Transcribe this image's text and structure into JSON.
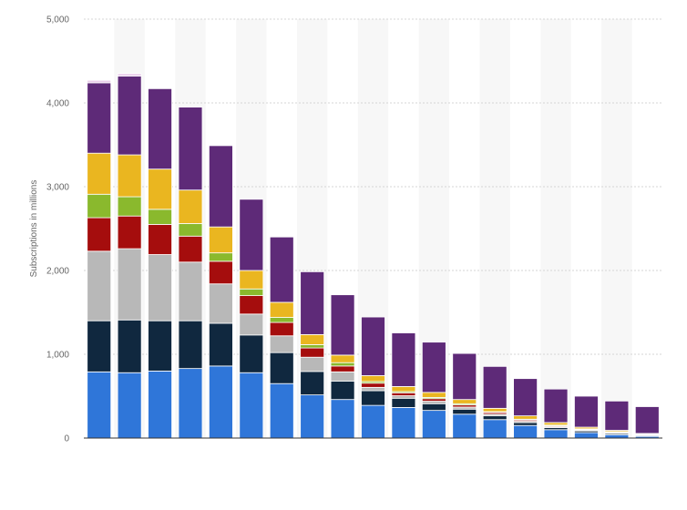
{
  "chart_data": {
    "type": "bar",
    "stacked": true,
    "ylabel": "Subscriptions in millions",
    "ylim": [
      0,
      5000
    ],
    "yticks": [
      0,
      1000,
      2000,
      3000,
      4000,
      5000
    ],
    "ytick_labels": [
      "0",
      "1,000",
      "2,000",
      "3,000",
      "4,000",
      "5,000"
    ],
    "grid": true,
    "legend": "none",
    "x_count": 19,
    "series": [
      {
        "color": "#2f76d9",
        "values": [
          790,
          780,
          800,
          830,
          860,
          780,
          650,
          515,
          460,
          390,
          365,
          330,
          285,
          220,
          150,
          100,
          65,
          40,
          20
        ]
      },
      {
        "color": "#10283f",
        "values": [
          610,
          630,
          600,
          570,
          510,
          450,
          370,
          280,
          220,
          175,
          110,
          80,
          60,
          45,
          35,
          25,
          20,
          15,
          10
        ]
      },
      {
        "color": "#b8b8b8",
        "values": [
          830,
          850,
          790,
          700,
          470,
          250,
          200,
          170,
          110,
          40,
          30,
          30,
          25,
          20,
          15,
          10,
          10,
          10,
          5
        ]
      },
      {
        "color": "#a50d0d",
        "values": [
          400,
          390,
          360,
          310,
          270,
          220,
          160,
          110,
          70,
          50,
          35,
          30,
          25,
          20,
          15,
          10,
          8,
          7,
          5
        ]
      },
      {
        "color": "#8ab92d",
        "values": [
          280,
          230,
          180,
          150,
          100,
          80,
          60,
          40,
          40,
          20,
          15,
          15,
          15,
          10,
          10,
          10,
          7,
          5,
          5
        ]
      },
      {
        "color": "#eab620",
        "values": [
          490,
          500,
          480,
          400,
          310,
          220,
          180,
          120,
          90,
          70,
          60,
          60,
          50,
          40,
          40,
          30,
          20,
          15,
          10
        ]
      },
      {
        "color": "#5e2a78",
        "values": [
          840,
          940,
          960,
          990,
          970,
          850,
          780,
          750,
          720,
          700,
          640,
          600,
          550,
          500,
          445,
          400,
          370,
          350,
          320
        ]
      },
      {
        "color": "#e9cdea",
        "values": [
          30,
          30,
          0,
          0,
          0,
          0,
          0,
          0,
          0,
          0,
          0,
          0,
          0,
          0,
          0,
          0,
          0,
          0,
          0
        ]
      }
    ]
  }
}
